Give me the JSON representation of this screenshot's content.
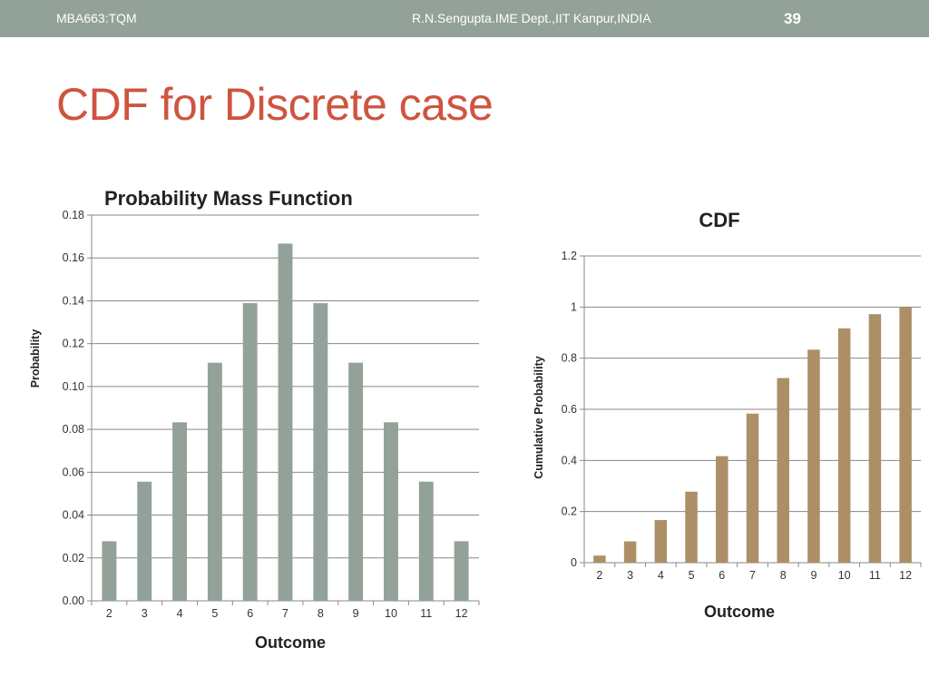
{
  "header": {
    "course": "MBA663:TQM",
    "author": "R.N.Sengupta.IME Dept.,IIT Kanpur,INDIA",
    "page_number": "39"
  },
  "slide": {
    "title": "CDF for Discrete case"
  },
  "colors": {
    "header_bg": "#93a299",
    "title": "#cf543f",
    "pmf_bar": "#93a299",
    "cdf_bar": "#ad8f67",
    "grid": "#888888"
  },
  "chart_data": [
    {
      "type": "bar",
      "title": "Probability Mass Function",
      "xlabel": "Outcome",
      "ylabel": "Probability",
      "categories": [
        "2",
        "3",
        "4",
        "5",
        "6",
        "7",
        "8",
        "9",
        "10",
        "11",
        "12"
      ],
      "values": [
        0.0278,
        0.0556,
        0.0833,
        0.1111,
        0.1389,
        0.1667,
        0.1389,
        0.1111,
        0.0833,
        0.0556,
        0.0278
      ],
      "ylim": [
        0,
        0.18
      ],
      "yticks": [
        "0.00",
        "0.02",
        "0.04",
        "0.06",
        "0.08",
        "0.10",
        "0.12",
        "0.14",
        "0.16",
        "0.18"
      ],
      "grid": true,
      "legend": "none"
    },
    {
      "type": "bar",
      "title": "CDF",
      "xlabel": "Outcome",
      "ylabel": "Cumulative Probability",
      "categories": [
        "2",
        "3",
        "4",
        "5",
        "6",
        "7",
        "8",
        "9",
        "10",
        "11",
        "12"
      ],
      "values": [
        0.0278,
        0.0833,
        0.1667,
        0.2778,
        0.4167,
        0.5833,
        0.7222,
        0.8333,
        0.9167,
        0.9722,
        1.0
      ],
      "ylim": [
        0,
        1.2
      ],
      "yticks": [
        "0",
        "0.2",
        "0.4",
        "0.6",
        "0.8",
        "1",
        "1.2"
      ],
      "grid": true,
      "legend": "none"
    }
  ]
}
